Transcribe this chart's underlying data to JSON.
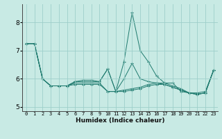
{
  "xlabel": "Humidex (Indice chaleur)",
  "background_color": "#c8eae4",
  "grid_color": "#9dcfca",
  "line_color": "#1e7a6e",
  "xlim": [
    -0.5,
    23.5
  ],
  "ylim": [
    4.85,
    8.65
  ],
  "yticks": [
    5,
    6,
    7,
    8
  ],
  "xtick_labels": [
    "0",
    "1",
    "2",
    "3",
    "4",
    "5",
    "6",
    "7",
    "8",
    "9",
    "10",
    "11",
    "12",
    "13",
    "14",
    "15",
    "16",
    "17",
    "18",
    "19",
    "20",
    "21",
    "22",
    "23"
  ],
  "series": [
    [
      7.25,
      7.25,
      6.0,
      5.75,
      5.75,
      5.75,
      5.9,
      5.9,
      5.9,
      5.9,
      6.35,
      5.55,
      6.6,
      8.35,
      7.0,
      6.6,
      6.1,
      5.85,
      5.85,
      5.55,
      5.5,
      5.5,
      5.55,
      6.3
    ],
    [
      7.25,
      7.25,
      6.0,
      5.75,
      5.75,
      5.75,
      5.8,
      5.8,
      5.8,
      5.8,
      5.55,
      5.55,
      5.55,
      5.6,
      5.65,
      5.75,
      5.8,
      5.8,
      5.7,
      5.6,
      5.5,
      5.45,
      5.5,
      6.3
    ],
    [
      7.25,
      7.25,
      6.0,
      5.75,
      5.75,
      5.75,
      5.85,
      5.85,
      5.85,
      5.85,
      5.55,
      5.55,
      5.6,
      5.65,
      5.7,
      5.8,
      5.85,
      5.85,
      5.75,
      5.65,
      5.5,
      5.45,
      5.5,
      6.3
    ],
    [
      7.25,
      7.25,
      6.0,
      5.75,
      5.75,
      5.75,
      5.9,
      5.95,
      5.95,
      5.9,
      6.35,
      5.55,
      6.0,
      6.55,
      6.0,
      5.9,
      5.85,
      5.8,
      5.7,
      5.6,
      5.5,
      5.45,
      5.5,
      6.3
    ]
  ]
}
